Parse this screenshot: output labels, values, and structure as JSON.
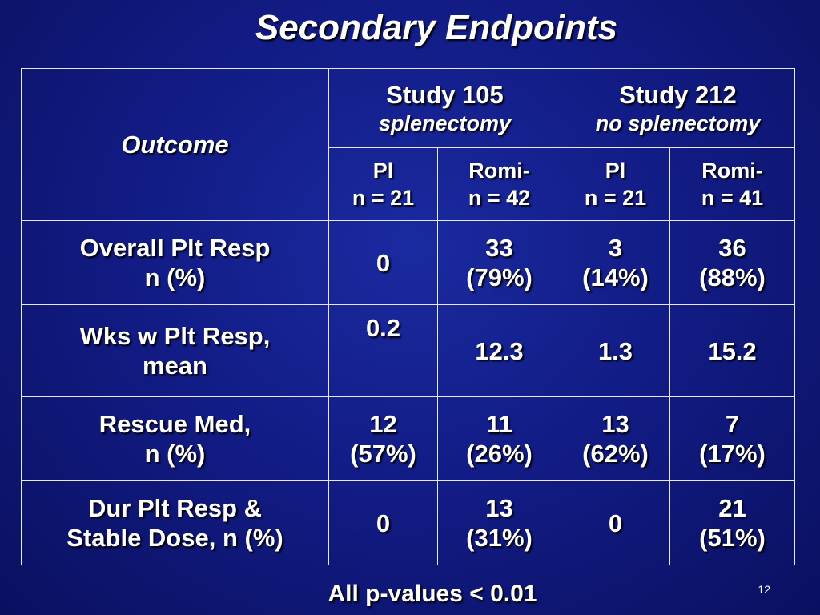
{
  "title": "Secondary Endpoints",
  "table": {
    "outcome_header": "Outcome",
    "studies": [
      {
        "name": "Study 105",
        "subtitle": "splenectomy"
      },
      {
        "name": "Study 212",
        "subtitle": "no splenectomy"
      }
    ],
    "arms": [
      {
        "name": "Pl",
        "n": "n = 21"
      },
      {
        "name": "Romi-",
        "n": "n = 42"
      },
      {
        "name": "Pl",
        "n": "n = 21"
      },
      {
        "name": "Romi-",
        "n": "n = 41"
      }
    ],
    "rows": [
      {
        "label": [
          "Overall Plt Resp",
          "n (%)"
        ],
        "cells": [
          [
            "0"
          ],
          [
            "33",
            "(79%)"
          ],
          [
            "3",
            "(14%)"
          ],
          [
            "36",
            "(88%)"
          ]
        ]
      },
      {
        "label": [
          "Wks w Plt Resp,",
          "mean"
        ],
        "cells": [
          [
            "0.2"
          ],
          [
            "12.3"
          ],
          [
            "1.3"
          ],
          [
            "15.2"
          ]
        ]
      },
      {
        "label": [
          "Rescue Med,",
          "n (%)"
        ],
        "cells": [
          [
            "12",
            "(57%)"
          ],
          [
            "11",
            "(26%)"
          ],
          [
            "13",
            "(62%)"
          ],
          [
            "7",
            "(17%)"
          ]
        ]
      },
      {
        "label": [
          "Dur Plt Resp &",
          "Stable Dose, n (%)"
        ],
        "cells": [
          [
            "0"
          ],
          [
            "13",
            "(31%)"
          ],
          [
            "0"
          ],
          [
            "21",
            "(51%)"
          ]
        ]
      }
    ]
  },
  "footer": "All p-values < 0.01",
  "slide_number": "12"
}
